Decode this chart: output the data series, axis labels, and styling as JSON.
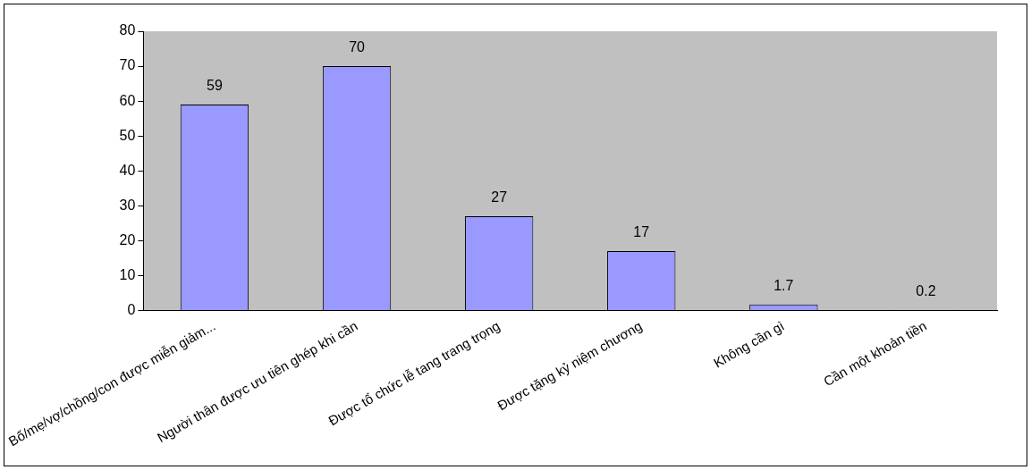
{
  "chart_data": {
    "type": "bar",
    "categories": [
      "Bố/mẹ/vợ/chồng/con được miễn giảm...",
      "Người thân được ưu tiên ghép khi cần",
      "Được tổ chức lễ tang trang trọng",
      "Được tặng kỷ niệm chương",
      "Không cần gì",
      "Cần một khoản tiền"
    ],
    "values": [
      59,
      70,
      27,
      17,
      1.7,
      0.2
    ],
    "color": "#9999ff",
    "ylim": [
      0,
      80
    ],
    "yticks": [
      0,
      10,
      20,
      30,
      40,
      50,
      60,
      70,
      80
    ],
    "grid": false,
    "legend": false,
    "data_labels": true
  }
}
